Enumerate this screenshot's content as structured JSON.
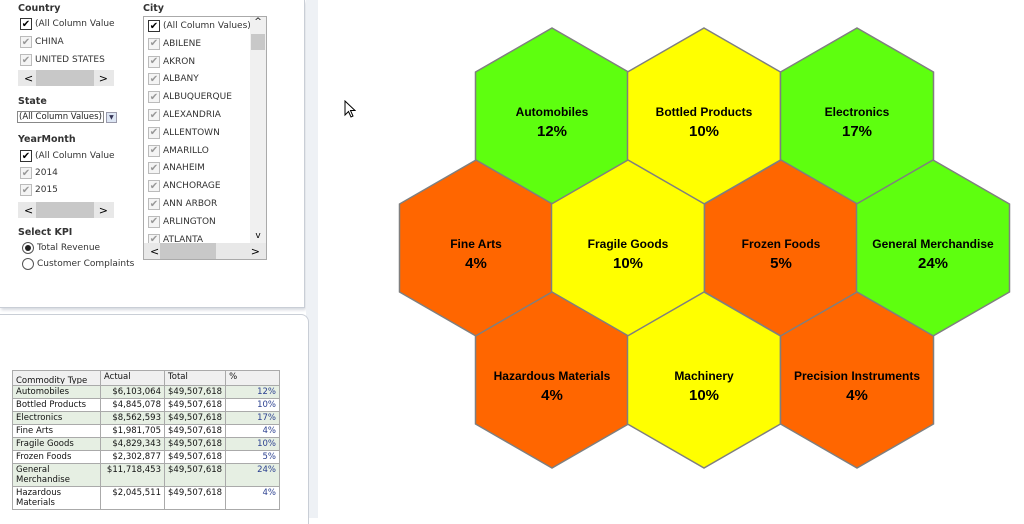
{
  "filters": {
    "country": {
      "label": "Country",
      "items": [
        {
          "text": "(All Column Value",
          "checked": true,
          "all": true
        },
        {
          "text": "CHINA",
          "checked": true
        },
        {
          "text": "UNITED STATES",
          "checked": true
        }
      ]
    },
    "state": {
      "label": "State",
      "value": "(All Column Values)"
    },
    "yearmonth": {
      "label": "YearMonth",
      "items": [
        {
          "text": "(All Column Value",
          "checked": true,
          "all": true
        },
        {
          "text": "2014",
          "checked": true
        },
        {
          "text": "2015",
          "checked": true
        }
      ]
    },
    "kpi": {
      "label": "Select KPI",
      "options": [
        {
          "text": "Total Revenue",
          "selected": true
        },
        {
          "text": "Customer Complaints",
          "selected": false
        }
      ]
    },
    "city": {
      "label": "City",
      "items": [
        "(All Column Values)",
        "ABILENE",
        "AKRON",
        "ALBANY",
        "ALBUQUERQUE",
        "ALEXANDRIA",
        "ALLENTOWN",
        "AMARILLO",
        "ANAHEIM",
        "ANCHORAGE",
        "ANN ARBOR",
        "ARLINGTON",
        "ATLANTA"
      ]
    }
  },
  "table": {
    "headers": [
      "Commodity Type",
      "Actual",
      "Total",
      "%"
    ],
    "rows": [
      [
        "Automobiles",
        "$6,103,064",
        "$49,507,618",
        "12%"
      ],
      [
        "Bottled Products",
        "$4,845,078",
        "$49,507,618",
        "10%"
      ],
      [
        "Electronics",
        "$8,562,593",
        "$49,507,618",
        "17%"
      ],
      [
        "Fine Arts",
        "$1,981,705",
        "$49,507,618",
        "4%"
      ],
      [
        "Fragile Goods",
        "$4,829,343",
        "$49,507,618",
        "10%"
      ],
      [
        "Frozen Foods",
        "$2,302,877",
        "$49,507,618",
        "5%"
      ],
      [
        "General Merchandise",
        "$11,718,453",
        "$49,507,618",
        "24%"
      ],
      [
        "Hazardous Materials",
        "$2,045,511",
        "$49,507,618",
        "4%"
      ]
    ]
  },
  "colors": {
    "green": "#5eff0f",
    "yellow": "#ffff00",
    "orange": "#ff6600"
  },
  "hexmap": [
    {
      "name": "Automobiles",
      "pct": "12%",
      "color": "green"
    },
    {
      "name": "Bottled Products",
      "pct": "10%",
      "color": "yellow"
    },
    {
      "name": "Electronics",
      "pct": "17%",
      "color": "green"
    },
    {
      "name": "Fine Arts",
      "pct": "4%",
      "color": "orange"
    },
    {
      "name": "Fragile Goods",
      "pct": "10%",
      "color": "yellow"
    },
    {
      "name": "Frozen Foods",
      "pct": "5%",
      "color": "orange"
    },
    {
      "name": "General Merchandise",
      "pct": "24%",
      "color": "green"
    },
    {
      "name": "Hazardous Materials",
      "pct": "4%",
      "color": "orange"
    },
    {
      "name": "Machinery",
      "pct": "10%",
      "color": "yellow"
    },
    {
      "name": "Precision Instruments",
      "pct": "4%",
      "color": "orange"
    }
  ]
}
